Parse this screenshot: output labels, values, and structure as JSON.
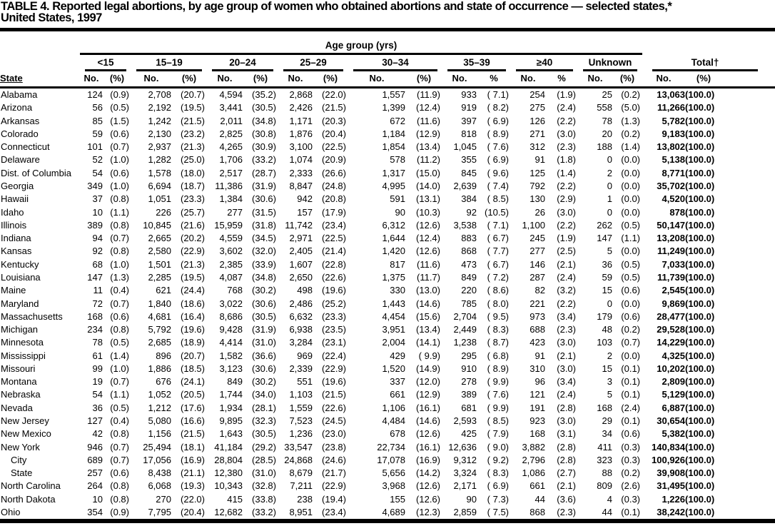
{
  "title_line1": "TABLE 4. Reported legal abortions, by age group of women who obtained abortions and state of occurrence — selected states,*",
  "title_line2": "United States, 1997",
  "table": {
    "group_header": "Age group (yrs)",
    "stub_header": "State",
    "age_groups": [
      {
        "label": "<15",
        "no": "No.",
        "pct": "(%)"
      },
      {
        "label": "15–19",
        "no": "No.",
        "pct": "(%)"
      },
      {
        "label": "20–24",
        "no": "No.",
        "pct": "(%)"
      },
      {
        "label": "25–29",
        "no": "No.",
        "pct": "(%)"
      },
      {
        "label": "30–34",
        "no": "No.",
        "pct": "(%)"
      },
      {
        "label": "35–39",
        "no": "No.",
        "pct": "%"
      },
      {
        "label": "≥40",
        "no": "No.",
        "pct": "%"
      },
      {
        "label": "Unknown",
        "no": "No.",
        "pct": "(%)"
      },
      {
        "label": "Total†",
        "no": "No.",
        "pct": "(%)"
      }
    ],
    "rows": [
      {
        "state": "Alabama",
        "indent": false,
        "cells": [
          "124",
          "(0.9)",
          "2,708",
          "(20.7)",
          "4,594",
          "(35.2)",
          "2,868",
          "(22.0)",
          "1,557",
          "(11.9)",
          "933",
          "( 7.1)",
          "254",
          "(1.9)",
          "25",
          "(0.2)",
          "13,063",
          "(100.0)"
        ]
      },
      {
        "state": "Arizona",
        "indent": false,
        "cells": [
          "56",
          "(0.5)",
          "2,192",
          "(19.5)",
          "3,441",
          "(30.5)",
          "2,426",
          "(21.5)",
          "1,399",
          "(12.4)",
          "919",
          "( 8.2)",
          "275",
          "(2.4)",
          "558",
          "(5.0)",
          "11,266",
          "(100.0)"
        ]
      },
      {
        "state": "Arkansas",
        "indent": false,
        "cells": [
          "85",
          "(1.5)",
          "1,242",
          "(21.5)",
          "2,011",
          "(34.8)",
          "1,171",
          "(20.3)",
          "672",
          "(11.6)",
          "397",
          "( 6.9)",
          "126",
          "(2.2)",
          "78",
          "(1.3)",
          "5,782",
          "(100.0)"
        ]
      },
      {
        "state": "Colorado",
        "indent": false,
        "cells": [
          "59",
          "(0.6)",
          "2,130",
          "(23.2)",
          "2,825",
          "(30.8)",
          "1,876",
          "(20.4)",
          "1,184",
          "(12.9)",
          "818",
          "( 8.9)",
          "271",
          "(3.0)",
          "20",
          "(0.2)",
          "9,183",
          "(100.0)"
        ]
      },
      {
        "state": "Connecticut",
        "indent": false,
        "cells": [
          "101",
          "(0.7)",
          "2,937",
          "(21.3)",
          "4,265",
          "(30.9)",
          "3,100",
          "(22.5)",
          "1,854",
          "(13.4)",
          "1,045",
          "( 7.6)",
          "312",
          "(2.3)",
          "188",
          "(1.4)",
          "13,802",
          "(100.0)"
        ]
      },
      {
        "state": "Delaware",
        "indent": false,
        "cells": [
          "52",
          "(1.0)",
          "1,282",
          "(25.0)",
          "1,706",
          "(33.2)",
          "1,074",
          "(20.9)",
          "578",
          "(11.2)",
          "355",
          "( 6.9)",
          "91",
          "(1.8)",
          "0",
          "(0.0)",
          "5,138",
          "(100.0)"
        ]
      },
      {
        "state": "Dist. of Columbia",
        "indent": false,
        "cells": [
          "54",
          "(0.6)",
          "1,578",
          "(18.0)",
          "2,517",
          "(28.7)",
          "2,333",
          "(26.6)",
          "1,317",
          "(15.0)",
          "845",
          "( 9.6)",
          "125",
          "(1.4)",
          "2",
          "(0.0)",
          "8,771",
          "(100.0)"
        ]
      },
      {
        "state": "Georgia",
        "indent": false,
        "cells": [
          "349",
          "(1.0)",
          "6,694",
          "(18.7)",
          "11,386",
          "(31.9)",
          "8,847",
          "(24.8)",
          "4,995",
          "(14.0)",
          "2,639",
          "( 7.4)",
          "792",
          "(2.2)",
          "0",
          "(0.0)",
          "35,702",
          "(100.0)"
        ]
      },
      {
        "state": "Hawaii",
        "indent": false,
        "cells": [
          "37",
          "(0.8)",
          "1,051",
          "(23.3)",
          "1,384",
          "(30.6)",
          "942",
          "(20.8)",
          "591",
          "(13.1)",
          "384",
          "( 8.5)",
          "130",
          "(2.9)",
          "1",
          "(0.0)",
          "4,520",
          "(100.0)"
        ]
      },
      {
        "state": "Idaho",
        "indent": false,
        "cells": [
          "10",
          "(1.1)",
          "226",
          "(25.7)",
          "277",
          "(31.5)",
          "157",
          "(17.9)",
          "90",
          "(10.3)",
          "92",
          "(10.5)",
          "26",
          "(3.0)",
          "0",
          "(0.0)",
          "878",
          "(100.0)"
        ]
      },
      {
        "state": "Illinois",
        "indent": false,
        "cells": [
          "389",
          "(0.8)",
          "10,845",
          "(21.6)",
          "15,959",
          "(31.8)",
          "11,742",
          "(23.4)",
          "6,312",
          "(12.6)",
          "3,538",
          "( 7.1)",
          "1,100",
          "(2.2)",
          "262",
          "(0.5)",
          "50,147",
          "(100.0)"
        ]
      },
      {
        "state": "Indiana",
        "indent": false,
        "cells": [
          "94",
          "(0.7)",
          "2,665",
          "(20.2)",
          "4,559",
          "(34.5)",
          "2,971",
          "(22.5)",
          "1,644",
          "(12.4)",
          "883",
          "( 6.7)",
          "245",
          "(1.9)",
          "147",
          "(1.1)",
          "13,208",
          "(100.0)"
        ]
      },
      {
        "state": "Kansas",
        "indent": false,
        "cells": [
          "92",
          "(0.8)",
          "2,580",
          "(22.9)",
          "3,602",
          "(32.0)",
          "2,405",
          "(21.4)",
          "1,420",
          "(12.6)",
          "868",
          "( 7.7)",
          "277",
          "(2.5)",
          "5",
          "(0.0)",
          "11,249",
          "(100.0)"
        ]
      },
      {
        "state": "Kentucky",
        "indent": false,
        "cells": [
          "68",
          "(1.0)",
          "1,501",
          "(21.3)",
          "2,385",
          "(33.9)",
          "1,607",
          "(22.8)",
          "817",
          "(11.6)",
          "473",
          "( 6.7)",
          "146",
          "(2.1)",
          "36",
          "(0.5)",
          "7,033",
          "(100.0)"
        ]
      },
      {
        "state": "Louisiana",
        "indent": false,
        "cells": [
          "147",
          "(1.3)",
          "2,285",
          "(19.5)",
          "4,087",
          "(34.8)",
          "2,650",
          "(22.6)",
          "1,375",
          "(11.7)",
          "849",
          "( 7.2)",
          "287",
          "(2.4)",
          "59",
          "(0.5)",
          "11,739",
          "(100.0)"
        ]
      },
      {
        "state": "Maine",
        "indent": false,
        "cells": [
          "11",
          "(0.4)",
          "621",
          "(24.4)",
          "768",
          "(30.2)",
          "498",
          "(19.6)",
          "330",
          "(13.0)",
          "220",
          "( 8.6)",
          "82",
          "(3.2)",
          "15",
          "(0.6)",
          "2,545",
          "(100.0)"
        ]
      },
      {
        "state": "Maryland",
        "indent": false,
        "cells": [
          "72",
          "(0.7)",
          "1,840",
          "(18.6)",
          "3,022",
          "(30.6)",
          "2,486",
          "(25.2)",
          "1,443",
          "(14.6)",
          "785",
          "( 8.0)",
          "221",
          "(2.2)",
          "0",
          "(0.0)",
          "9,869",
          "(100.0)"
        ]
      },
      {
        "state": "Massachusetts",
        "indent": false,
        "cells": [
          "168",
          "(0.6)",
          "4,681",
          "(16.4)",
          "8,686",
          "(30.5)",
          "6,632",
          "(23.3)",
          "4,454",
          "(15.6)",
          "2,704",
          "( 9.5)",
          "973",
          "(3.4)",
          "179",
          "(0.6)",
          "28,477",
          "(100.0)"
        ]
      },
      {
        "state": "Michigan",
        "indent": false,
        "cells": [
          "234",
          "(0.8)",
          "5,792",
          "(19.6)",
          "9,428",
          "(31.9)",
          "6,938",
          "(23.5)",
          "3,951",
          "(13.4)",
          "2,449",
          "( 8.3)",
          "688",
          "(2.3)",
          "48",
          "(0.2)",
          "29,528",
          "(100.0)"
        ]
      },
      {
        "state": "Minnesota",
        "indent": false,
        "cells": [
          "78",
          "(0.5)",
          "2,685",
          "(18.9)",
          "4,414",
          "(31.0)",
          "3,284",
          "(23.1)",
          "2,004",
          "(14.1)",
          "1,238",
          "( 8.7)",
          "423",
          "(3.0)",
          "103",
          "(0.7)",
          "14,229",
          "(100.0)"
        ]
      },
      {
        "state": "Mississippi",
        "indent": false,
        "cells": [
          "61",
          "(1.4)",
          "896",
          "(20.7)",
          "1,582",
          "(36.6)",
          "969",
          "(22.4)",
          "429",
          "( 9.9)",
          "295",
          "( 6.8)",
          "91",
          "(2.1)",
          "2",
          "(0.0)",
          "4,325",
          "(100.0)"
        ]
      },
      {
        "state": "Missouri",
        "indent": false,
        "cells": [
          "99",
          "(1.0)",
          "1,886",
          "(18.5)",
          "3,123",
          "(30.6)",
          "2,339",
          "(22.9)",
          "1,520",
          "(14.9)",
          "910",
          "( 8.9)",
          "310",
          "(3.0)",
          "15",
          "(0.1)",
          "10,202",
          "(100.0)"
        ]
      },
      {
        "state": "Montana",
        "indent": false,
        "cells": [
          "19",
          "(0.7)",
          "676",
          "(24.1)",
          "849",
          "(30.2)",
          "551",
          "(19.6)",
          "337",
          "(12.0)",
          "278",
          "( 9.9)",
          "96",
          "(3.4)",
          "3",
          "(0.1)",
          "2,809",
          "(100.0)"
        ]
      },
      {
        "state": "Nebraska",
        "indent": false,
        "cells": [
          "54",
          "(1.1)",
          "1,052",
          "(20.5)",
          "1,744",
          "(34.0)",
          "1,103",
          "(21.5)",
          "661",
          "(12.9)",
          "389",
          "( 7.6)",
          "121",
          "(2.4)",
          "5",
          "(0.1)",
          "5,129",
          "(100.0)"
        ]
      },
      {
        "state": "Nevada",
        "indent": false,
        "cells": [
          "36",
          "(0.5)",
          "1,212",
          "(17.6)",
          "1,934",
          "(28.1)",
          "1,559",
          "(22.6)",
          "1,106",
          "(16.1)",
          "681",
          "( 9.9)",
          "191",
          "(2.8)",
          "168",
          "(2.4)",
          "6,887",
          "(100.0)"
        ]
      },
      {
        "state": "New Jersey",
        "indent": false,
        "cells": [
          "127",
          "(0.4)",
          "5,080",
          "(16.6)",
          "9,895",
          "(32.3)",
          "7,523",
          "(24.5)",
          "4,484",
          "(14.6)",
          "2,593",
          "( 8.5)",
          "923",
          "(3.0)",
          "29",
          "(0.1)",
          "30,654",
          "(100.0)"
        ]
      },
      {
        "state": "New Mexico",
        "indent": false,
        "cells": [
          "42",
          "(0.8)",
          "1,156",
          "(21.5)",
          "1,643",
          "(30.5)",
          "1,236",
          "(23.0)",
          "678",
          "(12.6)",
          "425",
          "( 7.9)",
          "168",
          "(3.1)",
          "34",
          "(0.6)",
          "5,382",
          "(100.0)"
        ]
      },
      {
        "state": "New York",
        "indent": false,
        "cells": [
          "946",
          "(0.7)",
          "25,494",
          "(18.1)",
          "41,184",
          "(29.2)",
          "33,547",
          "(23.8)",
          "22,734",
          "(16.1)",
          "12,636",
          "( 9.0)",
          "3,882",
          "(2.8)",
          "411",
          "(0.3)",
          "140,834",
          "(100.0)"
        ]
      },
      {
        "state": "City",
        "indent": true,
        "cells": [
          "689",
          "(0.7)",
          "17,056",
          "(16.9)",
          "28,804",
          "(28.5)",
          "24,868",
          "(24.6)",
          "17,078",
          "(16.9)",
          "9,312",
          "( 9.2)",
          "2,796",
          "(2.8)",
          "323",
          "(0.3)",
          "100,926",
          "(100.0)"
        ]
      },
      {
        "state": "State",
        "indent": true,
        "cells": [
          "257",
          "(0.6)",
          "8,438",
          "(21.1)",
          "12,380",
          "(31.0)",
          "8,679",
          "(21.7)",
          "5,656",
          "(14.2)",
          "3,324",
          "( 8.3)",
          "1,086",
          "(2.7)",
          "88",
          "(0.2)",
          "39,908",
          "(100.0)"
        ]
      },
      {
        "state": "North Carolina",
        "indent": false,
        "cells": [
          "264",
          "(0.8)",
          "6,068",
          "(19.3)",
          "10,343",
          "(32.8)",
          "7,211",
          "(22.9)",
          "3,968",
          "(12.6)",
          "2,171",
          "( 6.9)",
          "661",
          "(2.1)",
          "809",
          "(2.6)",
          "31,495",
          "(100.0)"
        ]
      },
      {
        "state": "North Dakota",
        "indent": false,
        "cells": [
          "10",
          "(0.8)",
          "270",
          "(22.0)",
          "415",
          "(33.8)",
          "238",
          "(19.4)",
          "155",
          "(12.6)",
          "90",
          "( 7.3)",
          "44",
          "(3.6)",
          "4",
          "(0.3)",
          "1,226",
          "(100.0)"
        ]
      },
      {
        "state": "Ohio",
        "indent": false,
        "cells": [
          "354",
          "(0.9)",
          "7,795",
          "(20.4)",
          "12,682",
          "(33.2)",
          "8,951",
          "(23.4)",
          "4,689",
          "(12.3)",
          "2,859",
          "( 7.5)",
          "868",
          "(2.3)",
          "44",
          "(0.1)",
          "38,242",
          "(100.0)"
        ]
      }
    ]
  }
}
